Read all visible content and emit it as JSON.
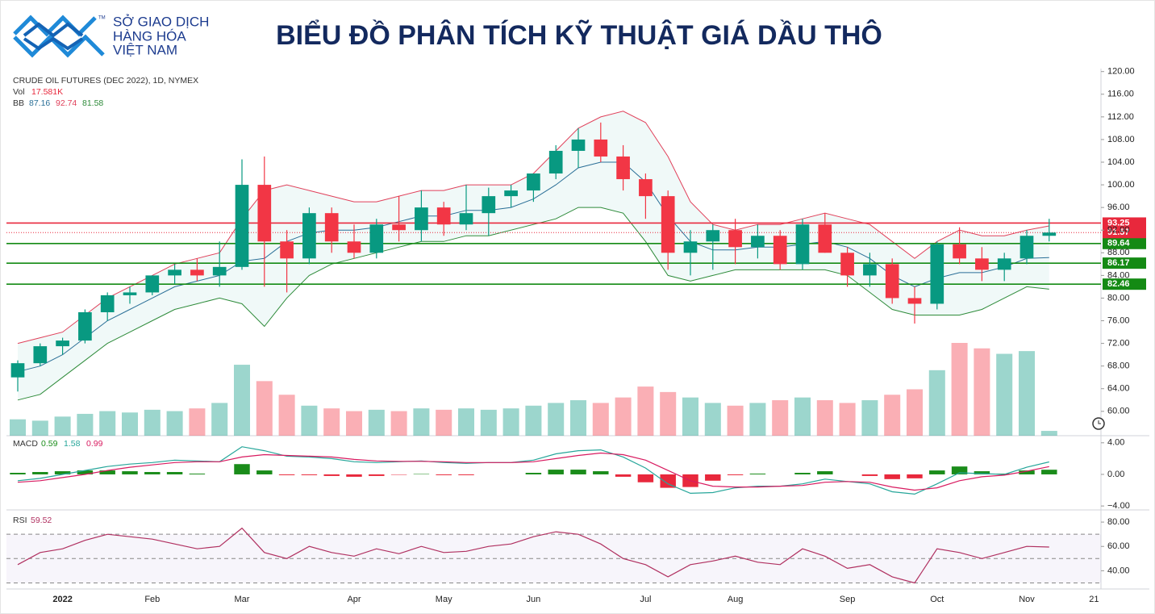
{
  "header": {
    "logo_lines": [
      "SỞ GIAO DỊCH",
      "HÀNG HÓA",
      "VIỆT NAM"
    ],
    "logo_mark": "TM",
    "title": "BIỂU ĐỒ PHÂN TÍCH KỸ THUẬT GIÁ DẦU THÔ"
  },
  "chart_data": {
    "type": "candlestick",
    "title": "CRUDE OIL FUTURES (DEC 2022), 1D, NYMEX",
    "categories": [
      null,
      null,
      "2022",
      null,
      null,
      null,
      "Feb",
      null,
      null,
      null,
      "Mar",
      null,
      null,
      null,
      null,
      "Apr",
      null,
      null,
      null,
      "May",
      null,
      null,
      null,
      "Jun",
      null,
      null,
      null,
      null,
      "Jul",
      null,
      null,
      null,
      "Aug",
      null,
      null,
      null,
      null,
      "Sep",
      null,
      null,
      null,
      "Oct",
      null,
      null,
      null,
      "Nov",
      null,
      null,
      "21"
    ],
    "open": [
      66,
      68.5,
      71.5,
      72.5,
      77.5,
      80.5,
      81,
      84,
      85,
      84,
      85.5,
      100,
      90,
      87,
      95,
      90,
      88,
      93,
      92,
      96,
      93,
      95,
      98,
      99,
      102,
      106,
      108,
      105,
      101,
      98,
      88,
      90,
      92,
      89,
      91,
      86,
      93,
      88,
      84,
      86,
      80,
      79,
      89.5,
      87,
      85,
      87,
      91,
      null,
      null
    ],
    "high": [
      69,
      72,
      73,
      78,
      81,
      82,
      84,
      86,
      87,
      90,
      104.5,
      105,
      92,
      96,
      96,
      93,
      94,
      98,
      99,
      97,
      100,
      99.5,
      100,
      102,
      107,
      110,
      111,
      107,
      102,
      99,
      92,
      93,
      94,
      93,
      92,
      94,
      95,
      89,
      88,
      87,
      82,
      90,
      92.5,
      89,
      88,
      92,
      94,
      null,
      null
    ],
    "low": [
      63.5,
      68,
      70,
      72,
      76,
      79,
      80.5,
      82.5,
      83,
      82,
      85,
      82,
      81,
      86,
      88,
      87,
      87,
      90,
      90,
      91,
      92,
      91,
      96,
      97,
      101,
      103,
      104,
      99,
      94,
      85,
      84,
      85,
      86,
      87,
      85,
      85,
      88,
      82,
      82,
      79,
      75.5,
      78,
      86,
      83,
      83,
      86,
      90,
      null,
      null
    ],
    "close": [
      68.5,
      71.5,
      72.5,
      77.5,
      80.5,
      81,
      84,
      85,
      84,
      85.5,
      100,
      90,
      87,
      95,
      90,
      88,
      93,
      92,
      96,
      93,
      95,
      98,
      99,
      102,
      106,
      108,
      105,
      101,
      98,
      88,
      90,
      92,
      89,
      91,
      86,
      93,
      88,
      84,
      86,
      80,
      79,
      89.5,
      87,
      85,
      87,
      91,
      91.57,
      null,
      null
    ],
    "up_color": "#089981",
    "down_color": "#f23645",
    "ylim": [
      55.7,
      120.1
    ],
    "yticks": [
      {
        "value": 60,
        "label": "60.00"
      },
      {
        "value": 64,
        "label": "64.00"
      },
      {
        "value": 68,
        "label": "68.00"
      },
      {
        "value": 72,
        "label": "72.00"
      },
      {
        "value": 76,
        "label": "76.00"
      },
      {
        "value": 80,
        "label": "80.00"
      },
      {
        "value": 84,
        "label": "84.00"
      },
      {
        "value": 88,
        "label": "88.00"
      },
      {
        "value": 92,
        "label": "92.00"
      },
      {
        "value": 96,
        "label": "96.00"
      },
      {
        "value": 100,
        "label": "100.00"
      },
      {
        "value": 104,
        "label": "104.00"
      },
      {
        "value": 108,
        "label": "108.00"
      },
      {
        "value": 112,
        "label": "112.00"
      },
      {
        "value": 116,
        "label": "116.00"
      },
      {
        "value": 120,
        "label": "120.00"
      }
    ],
    "volume": {
      "name": "Vol",
      "values": [
        60,
        55,
        70,
        80,
        90,
        85,
        95,
        90,
        100,
        120,
        260,
        200,
        150,
        110,
        100,
        90,
        95,
        90,
        100,
        95,
        100,
        95,
        100,
        110,
        120,
        130,
        120,
        140,
        180,
        160,
        140,
        120,
        110,
        120,
        130,
        140,
        130,
        120,
        130,
        150,
        170,
        240,
        340,
        320,
        300,
        310,
        17.581,
        null,
        null
      ],
      "value_labels": [
        null,
        null,
        null,
        null,
        null,
        null,
        null,
        null,
        null,
        null,
        null,
        null,
        null,
        null,
        null,
        null,
        null,
        null,
        null,
        null,
        null,
        null,
        null,
        null,
        null,
        null,
        null,
        null,
        null,
        null,
        null,
        null,
        null,
        null,
        null,
        null,
        null,
        null,
        null,
        null,
        null,
        null,
        null,
        null,
        null,
        null,
        "17.581K",
        null,
        null
      ]
    },
    "bollinger": {
      "name": "BB",
      "series": [
        {
          "color": "#2a6f97",
          "values": [
            67,
            68,
            70,
            73,
            76,
            78,
            80,
            82,
            83,
            84,
            86.5,
            87,
            90,
            91.5,
            92,
            92,
            92.5,
            93.5,
            94.5,
            94.5,
            95.5,
            95.5,
            96,
            97.5,
            100,
            103,
            104,
            104,
            100.5,
            94.5,
            90,
            88.5,
            88.5,
            89,
            89,
            89.5,
            90,
            89,
            87,
            84,
            82,
            83.5,
            84.5,
            84.5,
            85.5,
            87,
            87.16,
            null,
            null
          ]
        },
        {
          "color": "#e0405a",
          "values": [
            72,
            73,
            74,
            77,
            80,
            82,
            84,
            86,
            87,
            88,
            94,
            99,
            100,
            99,
            98,
            97,
            97,
            98,
            99,
            99,
            100,
            100,
            100,
            102,
            106,
            110,
            112,
            113,
            111,
            105,
            97,
            93,
            92,
            93,
            93,
            94,
            95,
            94,
            93,
            90,
            87,
            90,
            92,
            91,
            91,
            92,
            92.74,
            null,
            null
          ]
        },
        {
          "color": "#2e8b3a",
          "values": [
            62,
            63,
            66,
            69,
            72,
            74,
            76,
            78,
            79,
            80,
            79,
            75,
            80,
            84,
            86,
            87,
            88,
            89,
            90,
            90,
            91,
            91,
            92,
            93,
            94,
            96,
            96,
            95,
            90,
            84,
            83,
            84,
            85,
            85,
            85,
            85,
            85,
            84,
            81,
            78,
            77,
            77,
            77,
            78,
            80,
            82,
            81.58,
            null,
            null
          ]
        }
      ]
    },
    "levels": [
      {
        "value": 93.25,
        "color": "#e8283c"
      },
      {
        "value": 89.64,
        "color": "#148a14"
      },
      {
        "value": 86.17,
        "color": "#148a14"
      },
      {
        "value": 82.46,
        "color": "#148a14"
      }
    ],
    "last_price_color": "#e8283c",
    "macd": {
      "name": "MACD",
      "ylim": [
        -4.5,
        4.9
      ],
      "yticks": [
        {
          "value": 4,
          "label": "4.00"
        },
        {
          "value": 0,
          "label": "0.00"
        },
        {
          "value": -4,
          "label": "−4.00"
        }
      ],
      "histogram": {
        "pos_color": "#1a8c1a",
        "neg_color": "#e8283c",
        "values": [
          0.2,
          0.3,
          0.4,
          0.5,
          0.5,
          0.4,
          0.3,
          0.3,
          0.1,
          0,
          1.3,
          0.5,
          -0.1,
          -0.1,
          -0.2,
          -0.3,
          -0.2,
          -0.05,
          0.05,
          -0.1,
          -0.1,
          0,
          0,
          0.2,
          0.6,
          0.6,
          0.4,
          -0.3,
          -1,
          -1.7,
          -1.6,
          -0.8,
          -0.1,
          0.1,
          0,
          0.2,
          0.4,
          0,
          -0.2,
          -0.6,
          -0.5,
          0.5,
          1,
          0.4,
          0.1,
          0.5,
          0.59,
          null,
          null
        ]
      },
      "series": [
        {
          "color": "#26a69a",
          "values": [
            -0.8,
            -0.5,
            0,
            0.5,
            1,
            1.3,
            1.5,
            1.8,
            1.7,
            1.6,
            3.5,
            3,
            2.3,
            2.2,
            2,
            1.6,
            1.5,
            1.6,
            1.7,
            1.5,
            1.4,
            1.5,
            1.5,
            1.8,
            2.6,
            3,
            3.1,
            2.2,
            0.8,
            -1.2,
            -2.4,
            -2.3,
            -1.7,
            -1.5,
            -1.5,
            -1.2,
            -0.6,
            -0.9,
            -1.2,
            -2.2,
            -2.5,
            -1.2,
            0.2,
            0.1,
            0,
            0.9,
            1.58,
            null,
            null
          ]
        },
        {
          "color": "#d81b60",
          "values": [
            -1,
            -0.8,
            -0.4,
            0,
            0.5,
            0.9,
            1.2,
            1.5,
            1.6,
            1.6,
            2.2,
            2.5,
            2.4,
            2.3,
            2.2,
            1.9,
            1.7,
            1.65,
            1.65,
            1.6,
            1.5,
            1.5,
            1.5,
            1.6,
            2,
            2.4,
            2.7,
            2.5,
            1.8,
            0.5,
            -0.8,
            -1.5,
            -1.6,
            -1.6,
            -1.5,
            -1.4,
            -1,
            -0.9,
            -1,
            -1.6,
            -2,
            -1.7,
            -0.8,
            -0.3,
            -0.1,
            0.4,
            0.99,
            null,
            null
          ]
        }
      ]
    },
    "rsi": {
      "name": "RSI",
      "ylim": [
        25,
        90
      ],
      "yticks": [
        {
          "value": 80,
          "label": "80.00"
        },
        {
          "value": 60,
          "label": "60.00"
        },
        {
          "value": 40,
          "label": "40.00"
        }
      ],
      "bands": [
        70,
        50,
        30
      ],
      "color": "#b03060",
      "values": [
        45,
        55,
        58,
        65,
        70,
        68,
        66,
        62,
        58,
        60,
        75,
        55,
        50,
        60,
        55,
        52,
        58,
        54,
        60,
        55,
        56,
        60,
        62,
        68,
        72,
        70,
        62,
        50,
        45,
        35,
        45,
        48,
        52,
        47,
        45,
        58,
        52,
        42,
        45,
        35,
        30,
        58,
        55,
        50,
        55,
        60,
        59.52,
        null,
        null
      ]
    }
  }
}
